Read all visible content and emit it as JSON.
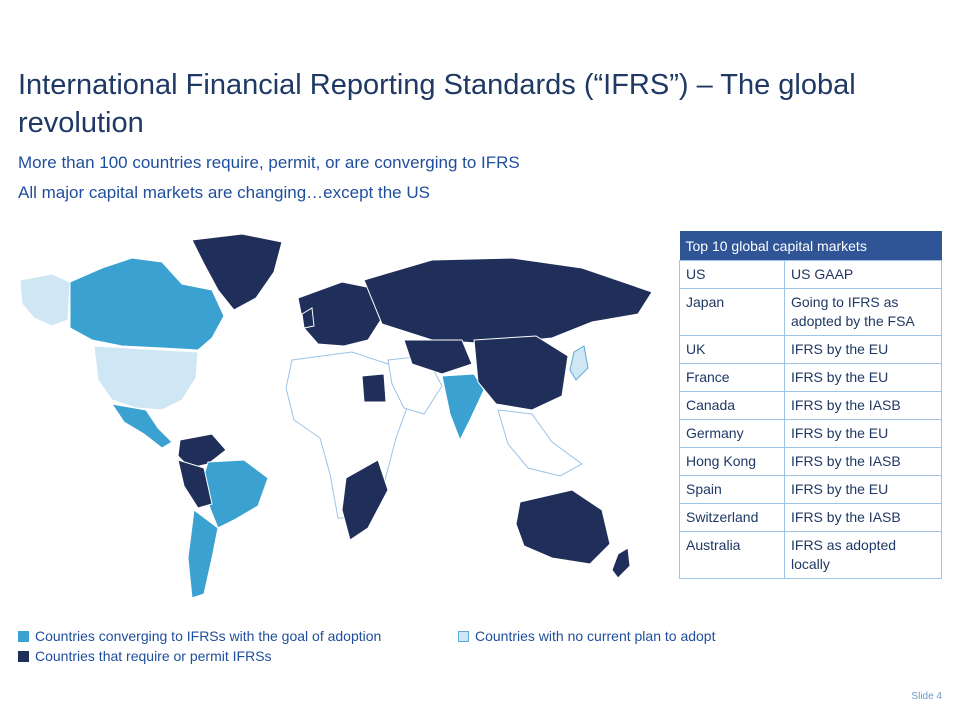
{
  "title": "International Financial Reporting Standards (“IFRS”) – The global revolution",
  "subtitle_1": "More than 100 countries require, permit, or are converging to IFRS",
  "subtitle_2": "All major capital markets are changing…except the US",
  "colors": {
    "converging": "#3aa1d1",
    "require_permit": "#1f2f5a",
    "no_plan": "#cfe6f4",
    "other": "#ffffff",
    "table_header": "#2f5597"
  },
  "table": {
    "header": "Top 10 global capital markets",
    "rows": [
      {
        "market": "US",
        "status": "US GAAP"
      },
      {
        "market": "Japan",
        "status": "Going to IFRS as adopted by the FSA"
      },
      {
        "market": "UK",
        "status": "IFRS by the EU"
      },
      {
        "market": "France",
        "status": "IFRS by the EU"
      },
      {
        "market": "Canada",
        "status": "IFRS by the IASB"
      },
      {
        "market": "Germany",
        "status": "IFRS by the EU"
      },
      {
        "market": "Hong Kong",
        "status": "IFRS by the IASB"
      },
      {
        "market": "Spain",
        "status": "IFRS by the EU"
      },
      {
        "market": "Switzerland",
        "status": "IFRS by the IASB"
      },
      {
        "market": "Australia",
        "status": "IFRS as adopted locally"
      }
    ]
  },
  "legend": {
    "converging": "Countries converging to IFRSs with the goal of adoption",
    "require_permit": "Countries that require or permit IFRSs",
    "no_plan": "Countries with no current plan to adopt"
  },
  "slide_number": "Slide 4"
}
